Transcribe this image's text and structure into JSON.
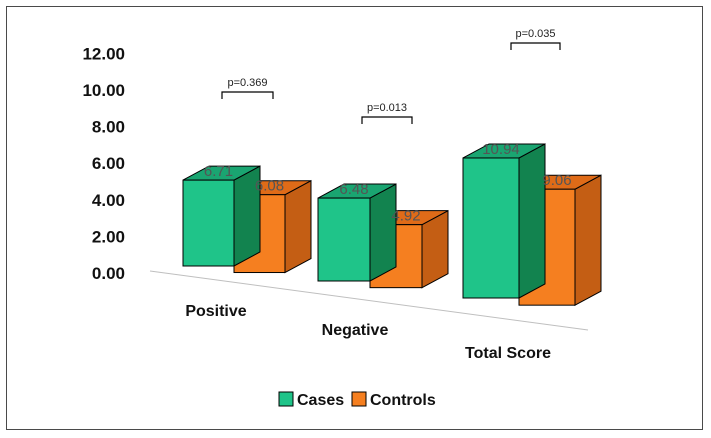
{
  "chart_data": {
    "type": "bar",
    "categories": [
      "Positive",
      "Negative",
      "Total Score"
    ],
    "series": [
      {
        "name": "Cases",
        "values": [
          6.71,
          6.48,
          10.94
        ]
      },
      {
        "name": "Controls",
        "values": [
          6.08,
          4.92,
          9.06
        ]
      }
    ],
    "data_labels": [
      [
        "6.71",
        "6.08"
      ],
      [
        "6.48",
        "4.92"
      ],
      [
        "10.94",
        "9.06"
      ]
    ],
    "p_values": [
      "p=0.369",
      "p=0.013",
      "p=0.035"
    ],
    "y_ticks": [
      "0.00",
      "2.00",
      "4.00",
      "6.00",
      "8.00",
      "10.00",
      "12.00"
    ],
    "ylim": [
      0,
      12
    ],
    "legend_position": "bottom",
    "grid": false,
    "style": "3d-clustered-column"
  },
  "colors": {
    "cases_front": "#1fc489",
    "cases_top": "#1aa571",
    "cases_side": "#12834f",
    "controls_front": "#f57f20",
    "controls_top": "#df6b18",
    "controls_side": "#c45e14",
    "outline": "#000000"
  }
}
